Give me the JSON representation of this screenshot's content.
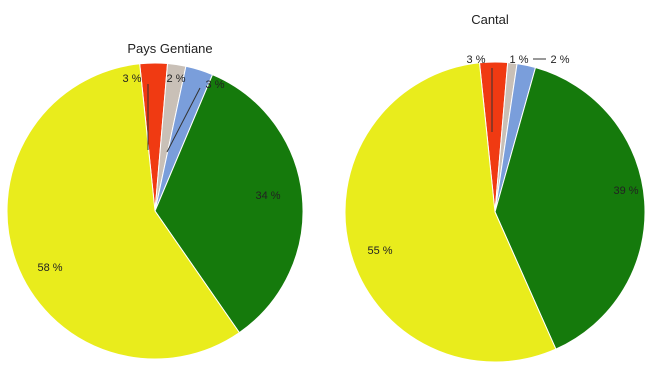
{
  "colors": {
    "red": "#f03a12",
    "grey": "#c9c0b7",
    "blue": "#7a9edb",
    "green": "#157a0c",
    "yellow": "#e9ec1c"
  },
  "chart_data": [
    {
      "type": "pie",
      "title": "Pays Gentiane",
      "legend": "none",
      "slices": [
        {
          "value": 3,
          "label": "3 %",
          "color": "#f03a12"
        },
        {
          "value": 2,
          "label": "2 %",
          "color": "#c9c0b7"
        },
        {
          "value": 3,
          "label": "3 %",
          "color": "#7a9edb"
        },
        {
          "value": 34,
          "label": "34 %",
          "color": "#157a0c"
        },
        {
          "value": 58,
          "label": "58 %",
          "color": "#e9ec1c"
        }
      ]
    },
    {
      "type": "pie",
      "title": "Cantal",
      "legend": "none",
      "slices": [
        {
          "value": 3,
          "label": "3 %",
          "color": "#f03a12"
        },
        {
          "value": 1,
          "label": "1 %",
          "color": "#c9c0b7"
        },
        {
          "value": 2,
          "label": "2 %",
          "color": "#7a9edb"
        },
        {
          "value": 39,
          "label": "39 %",
          "color": "#157a0c"
        },
        {
          "value": 55,
          "label": "55 %",
          "color": "#e9ec1c"
        }
      ]
    }
  ]
}
